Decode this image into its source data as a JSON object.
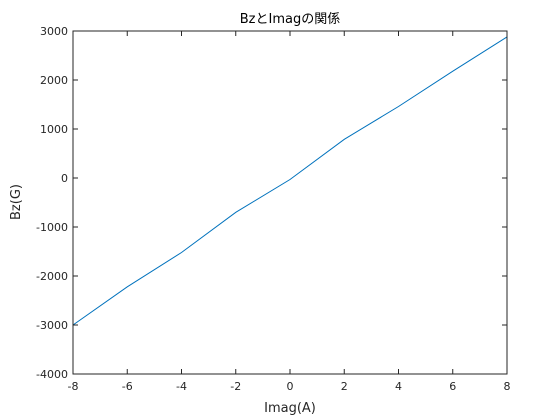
{
  "chart_data": {
    "type": "line",
    "title": "BzとImagの関係",
    "xlabel": "Imag(A)",
    "ylabel": "Bz(G)",
    "xlim": [
      -8,
      8
    ],
    "ylim": [
      -4000,
      3000
    ],
    "xticks": [
      -8,
      -6,
      -4,
      -2,
      0,
      2,
      4,
      6,
      8
    ],
    "yticks": [
      -4000,
      -3000,
      -2000,
      -1000,
      0,
      1000,
      2000,
      3000
    ],
    "grid": false,
    "series": [
      {
        "color": "#0072bd",
        "x": [
          -8,
          -6,
          -4,
          -2,
          0,
          2,
          4,
          6,
          8
        ],
        "y": [
          -3000,
          -2220,
          -1520,
          -700,
          -30,
          790,
          1460,
          2180,
          2880
        ]
      }
    ]
  }
}
